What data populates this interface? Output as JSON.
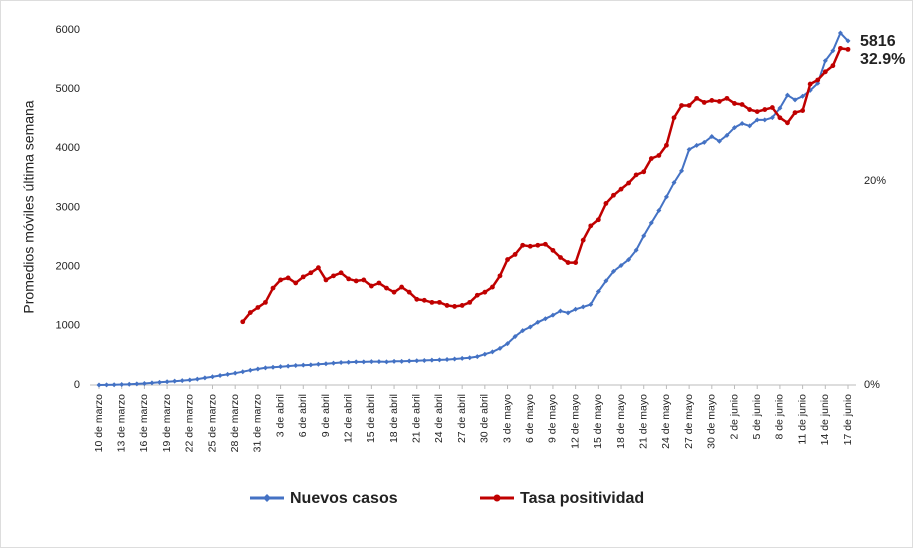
{
  "chart_data": {
    "type": "line",
    "y_label": "Promedios móviles última semana",
    "categories": [
      "10 de marzo",
      null,
      null,
      "13 de marzo",
      null,
      null,
      "16 de marzo",
      null,
      null,
      "19 de marzo",
      null,
      null,
      "22 de marzo",
      null,
      null,
      "25 de marzo",
      null,
      null,
      "28 de marzo",
      null,
      null,
      "31 de marzo",
      null,
      null,
      "3 de abril",
      null,
      null,
      "6 de abril",
      null,
      null,
      "9 de abril",
      null,
      null,
      "12 de abril",
      null,
      null,
      "15 de abril",
      null,
      null,
      "18 de abril",
      null,
      null,
      "21 de abril",
      null,
      null,
      "24 de abril",
      null,
      null,
      "27 de abril",
      null,
      null,
      "30 de abril",
      null,
      null,
      "3 de mayo",
      null,
      null,
      "6 de mayo",
      null,
      null,
      "9 de mayo",
      null,
      null,
      "12 de mayo",
      null,
      null,
      "15 de mayo",
      null,
      null,
      "18 de mayo",
      null,
      null,
      "21 de mayo",
      null,
      null,
      "24 de mayo",
      null,
      null,
      "27 de mayo",
      null,
      null,
      "30 de mayo",
      null,
      null,
      "2 de junio",
      null,
      null,
      "5 de junio",
      null,
      null,
      "8 de junio",
      null,
      null,
      "11 de junio",
      null,
      null,
      "14 de junio",
      null,
      null,
      "17 de junio"
    ],
    "ylim": [
      0,
      6000
    ],
    "yticks": [
      0,
      1000,
      2000,
      3000,
      4000,
      5000,
      6000
    ],
    "y2lim": [
      0,
      34.8
    ],
    "y2ticks": [
      {
        "value": 0,
        "label": "0%"
      },
      {
        "value": 20,
        "label": "20%"
      }
    ],
    "series": [
      {
        "name": "Nuevos casos",
        "color": "#4472c4",
        "marker": "diamond",
        "values": [
          0,
          2,
          5,
          8,
          12,
          18,
          25,
          35,
          45,
          55,
          65,
          75,
          85,
          100,
          120,
          140,
          160,
          180,
          200,
          225,
          250,
          270,
          290,
          300,
          310,
          320,
          330,
          335,
          340,
          350,
          360,
          370,
          380,
          385,
          390,
          390,
          395,
          395,
          390,
          400,
          400,
          405,
          410,
          415,
          420,
          425,
          430,
          440,
          450,
          460,
          480,
          520,
          560,
          620,
          700,
          820,
          920,
          980,
          1060,
          1120,
          1180,
          1250,
          1220,
          1280,
          1320,
          1360,
          1580,
          1760,
          1920,
          2020,
          2120,
          2280,
          2520,
          2740,
          2950,
          3180,
          3420,
          3620,
          3980,
          4050,
          4100,
          4200,
          4120,
          4220,
          4350,
          4420,
          4380,
          4480,
          4480,
          4520,
          4680,
          4900,
          4820,
          4880,
          4980,
          5100,
          5480,
          5650,
          5950,
          5816
        ]
      },
      {
        "name": "Tasa positividad",
        "color": "#c00000",
        "marker": "circle",
        "axis": "y2",
        "values": [
          null,
          null,
          null,
          null,
          null,
          null,
          null,
          null,
          null,
          null,
          null,
          null,
          null,
          null,
          null,
          null,
          null,
          null,
          null,
          6.2,
          7.1,
          7.6,
          8.1,
          9.5,
          10.3,
          10.5,
          10.0,
          10.6,
          11.0,
          11.5,
          10.3,
          10.7,
          11.0,
          10.4,
          10.2,
          10.3,
          9.7,
          10.0,
          9.5,
          9.1,
          9.6,
          9.1,
          8.4,
          8.3,
          8.1,
          8.1,
          7.8,
          7.7,
          7.8,
          8.1,
          8.8,
          9.1,
          9.6,
          10.7,
          12.3,
          12.8,
          13.7,
          13.6,
          13.7,
          13.8,
          13.2,
          12.5,
          12.0,
          12.0,
          14.2,
          15.6,
          16.2,
          17.8,
          18.6,
          19.2,
          19.8,
          20.6,
          20.9,
          22.2,
          22.5,
          23.5,
          26.2,
          27.4,
          27.4,
          28.1,
          27.7,
          27.9,
          27.8,
          28.1,
          27.6,
          27.5,
          27.0,
          26.8,
          27.0,
          27.2,
          26.2,
          25.7,
          26.7,
          26.9,
          29.5,
          29.9,
          30.7,
          31.3,
          33.0,
          32.9
        ],
        "value_labels": [
          null,
          null,
          null,
          null,
          null,
          null,
          null,
          null,
          null,
          null,
          null,
          null,
          null,
          null,
          null,
          null,
          null,
          null,
          null,
          null,
          null,
          null,
          null,
          null,
          null,
          null,
          null,
          null,
          null,
          null,
          null,
          null,
          null,
          null,
          null,
          null,
          null,
          null,
          null,
          null,
          null,
          null,
          null,
          null,
          null,
          null,
          null,
          null,
          null,
          null,
          null,
          null,
          null,
          null,
          null,
          null,
          null,
          null,
          null,
          null,
          null,
          null,
          null,
          null,
          null,
          null,
          null,
          null,
          null,
          null,
          null,
          null,
          null,
          null,
          null,
          null,
          null,
          null,
          null,
          null,
          null,
          null,
          null,
          null,
          null,
          null,
          null,
          null,
          null,
          null,
          null,
          null,
          null,
          null,
          null,
          null,
          null,
          null,
          null,
          "32.9%"
        ]
      }
    ]
  }
}
